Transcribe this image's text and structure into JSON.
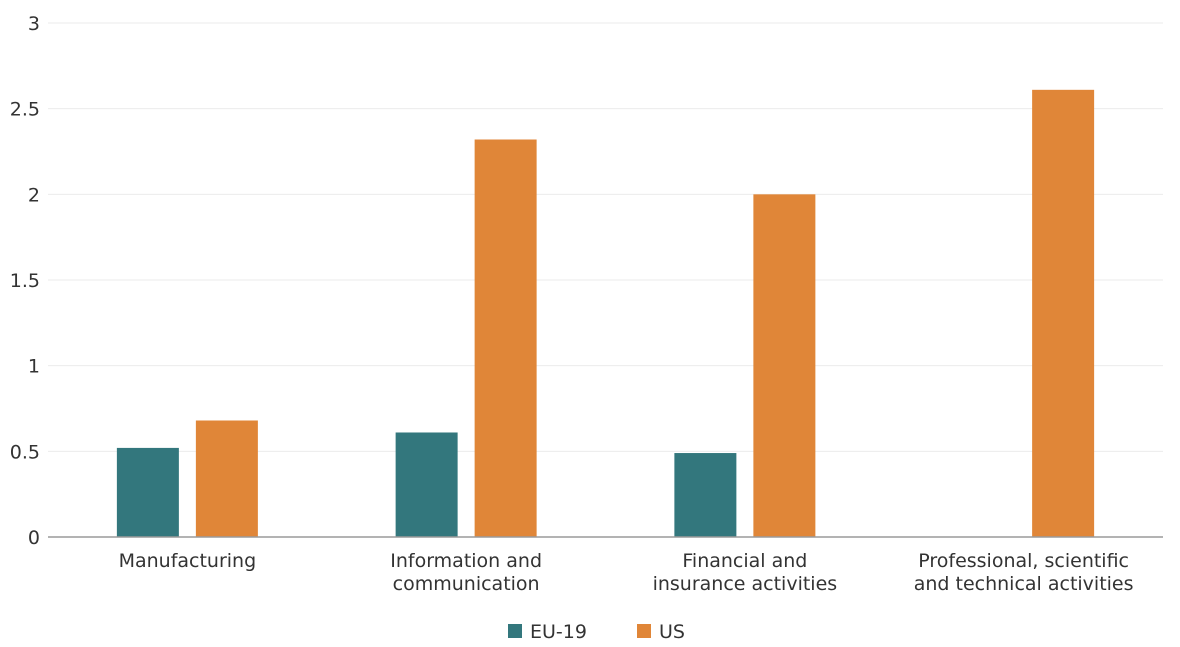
{
  "chart_data": {
    "type": "bar",
    "title": "",
    "xlabel": "",
    "ylabel": "",
    "categories": [
      [
        "Manufacturing"
      ],
      [
        "Information and",
        "communication"
      ],
      [
        "Financial and",
        "insurance activities"
      ],
      [
        "Professional, scientific",
        "and technical activities"
      ]
    ],
    "series": [
      {
        "name": "EU-19",
        "color": "#33777d",
        "values": [
          0.52,
          0.61,
          0.49,
          null
        ]
      },
      {
        "name": "US",
        "color": "#e08638",
        "values": [
          0.68,
          2.32,
          2.0,
          2.61
        ]
      }
    ],
    "ylim": [
      0,
      3
    ],
    "yticks": [
      "0",
      "0.5",
      "1",
      "1.5",
      "2",
      "2.5",
      "3"
    ],
    "grid": true,
    "legend_position": "bottom-center"
  }
}
